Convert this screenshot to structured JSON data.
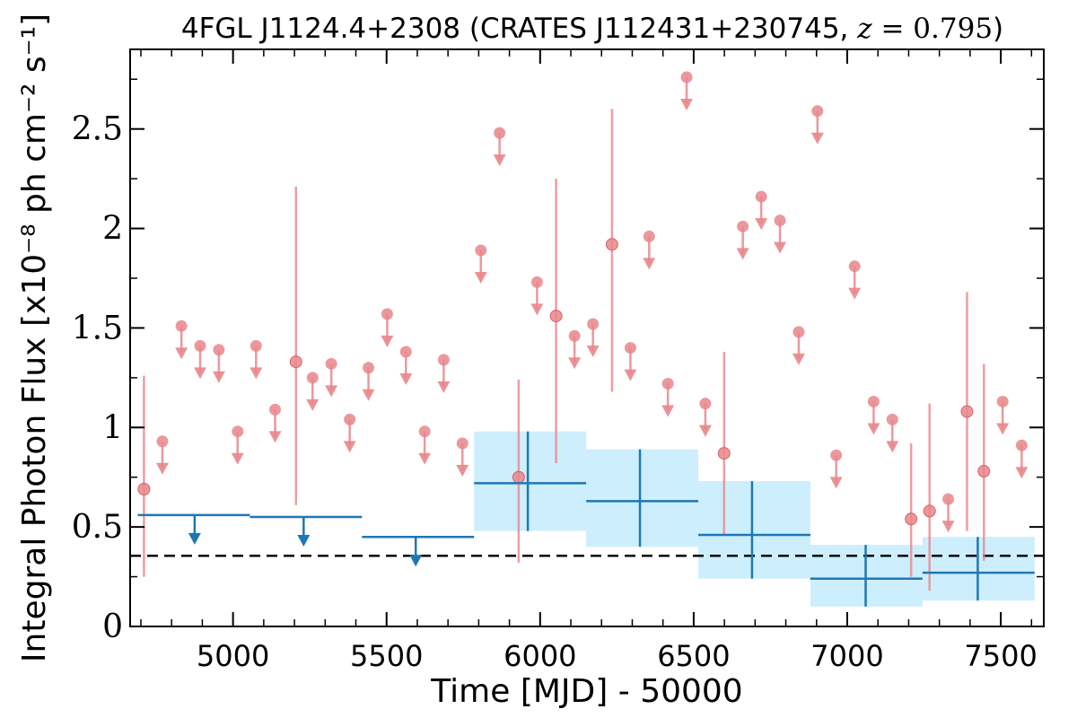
{
  "chart_data": {
    "type": "scatter",
    "title": "4FGL J1124.4+2308 (CRATES J112431+230745, z = 0.795)",
    "xlabel": "Time [MJD] - 50000",
    "ylabel": "Integral Photon Flux [x10⁻⁸ ph cm⁻² s⁻¹]",
    "xlim": [
      4665,
      7640
    ],
    "ylim": [
      0,
      2.9
    ],
    "x_ticks": [
      5000,
      5500,
      6000,
      6500,
      7000,
      7500
    ],
    "x_tick_labels": [
      "5000",
      "5500",
      "6000",
      "6500",
      "7000",
      "7500"
    ],
    "y_ticks": [
      0,
      0.5,
      1,
      1.5,
      2,
      2.5
    ],
    "y_tick_labels": [
      "0",
      "0.5",
      "1",
      "1.5",
      "2",
      "2.5"
    ],
    "grid": false,
    "reference_line": {
      "y": 0.355,
      "style": "dashed"
    },
    "series": [
      {
        "style": "short-bin",
        "color": "#e8868b",
        "points": [
          {
            "x": 4710,
            "y": 0.69,
            "lo": 0.25,
            "hi": 1.26
          },
          {
            "x": 5205,
            "y": 1.33,
            "lo": 0.61,
            "hi": 2.21
          },
          {
            "x": 5930,
            "y": 0.75,
            "lo": 0.32,
            "hi": 1.24
          },
          {
            "x": 6052,
            "y": 1.56,
            "lo": 0.82,
            "hi": 2.25
          },
          {
            "x": 6234,
            "y": 1.92,
            "lo": 1.18,
            "hi": 2.6
          },
          {
            "x": 6599,
            "y": 0.87,
            "lo": 0.46,
            "hi": 1.38
          },
          {
            "x": 7208,
            "y": 0.54,
            "lo": 0.25,
            "hi": 0.92
          },
          {
            "x": 7268,
            "y": 0.58,
            "lo": 0.18,
            "hi": 1.12
          },
          {
            "x": 7390,
            "y": 1.08,
            "lo": 0.48,
            "hi": 1.68
          },
          {
            "x": 7445,
            "y": 0.78,
            "lo": 0.33,
            "hi": 1.32
          }
        ],
        "upper_limits": [
          {
            "x": 4770,
            "y": 0.93
          },
          {
            "x": 4832,
            "y": 1.51
          },
          {
            "x": 4893,
            "y": 1.41
          },
          {
            "x": 4954,
            "y": 1.39
          },
          {
            "x": 5015,
            "y": 0.98
          },
          {
            "x": 5075,
            "y": 1.41
          },
          {
            "x": 5137,
            "y": 1.09
          },
          {
            "x": 5259,
            "y": 1.25
          },
          {
            "x": 5320,
            "y": 1.32
          },
          {
            "x": 5380,
            "y": 1.04
          },
          {
            "x": 5441,
            "y": 1.3
          },
          {
            "x": 5502,
            "y": 1.57
          },
          {
            "x": 5563,
            "y": 1.38
          },
          {
            "x": 5624,
            "y": 0.98
          },
          {
            "x": 5686,
            "y": 1.34
          },
          {
            "x": 5747,
            "y": 0.92
          },
          {
            "x": 5807,
            "y": 1.89
          },
          {
            "x": 5868,
            "y": 2.48
          },
          {
            "x": 5990,
            "y": 1.73
          },
          {
            "x": 6112,
            "y": 1.46
          },
          {
            "x": 6172,
            "y": 1.52
          },
          {
            "x": 6294,
            "y": 1.4
          },
          {
            "x": 6355,
            "y": 1.96
          },
          {
            "x": 6416,
            "y": 1.22
          },
          {
            "x": 6477,
            "y": 2.76
          },
          {
            "x": 6538,
            "y": 1.12
          },
          {
            "x": 6660,
            "y": 2.01
          },
          {
            "x": 6720,
            "y": 2.16
          },
          {
            "x": 6781,
            "y": 2.04
          },
          {
            "x": 6842,
            "y": 1.48
          },
          {
            "x": 6903,
            "y": 2.59
          },
          {
            "x": 6964,
            "y": 0.86
          },
          {
            "x": 7024,
            "y": 1.81
          },
          {
            "x": 7086,
            "y": 1.13
          },
          {
            "x": 7147,
            "y": 1.04
          },
          {
            "x": 7329,
            "y": 0.64
          },
          {
            "x": 7506,
            "y": 1.13
          },
          {
            "x": 7568,
            "y": 0.91
          }
        ]
      },
      {
        "style": "long-bin",
        "color": "#1f77b4",
        "band_color": "#cdeefd",
        "upper_limits": [
          {
            "x0": 4690,
            "x1": 5055,
            "x": 4875,
            "y": 0.56
          },
          {
            "x0": 5055,
            "x1": 5420,
            "x": 5230,
            "y": 0.55
          },
          {
            "x0": 5420,
            "x1": 5785,
            "x": 5595,
            "y": 0.45
          }
        ],
        "points": [
          {
            "x0": 5785,
            "x1": 6150,
            "x": 5960,
            "y": 0.72,
            "lo": 0.48,
            "hi": 0.98
          },
          {
            "x0": 6150,
            "x1": 6515,
            "x": 6325,
            "y": 0.63,
            "lo": 0.4,
            "hi": 0.89
          },
          {
            "x0": 6515,
            "x1": 6880,
            "x": 6690,
            "y": 0.46,
            "lo": 0.24,
            "hi": 0.73
          },
          {
            "x0": 6880,
            "x1": 7245,
            "x": 7060,
            "y": 0.24,
            "lo": 0.1,
            "hi": 0.41
          },
          {
            "x0": 7245,
            "x1": 7610,
            "x": 7425,
            "y": 0.27,
            "lo": 0.13,
            "hi": 0.45
          }
        ]
      }
    ]
  }
}
